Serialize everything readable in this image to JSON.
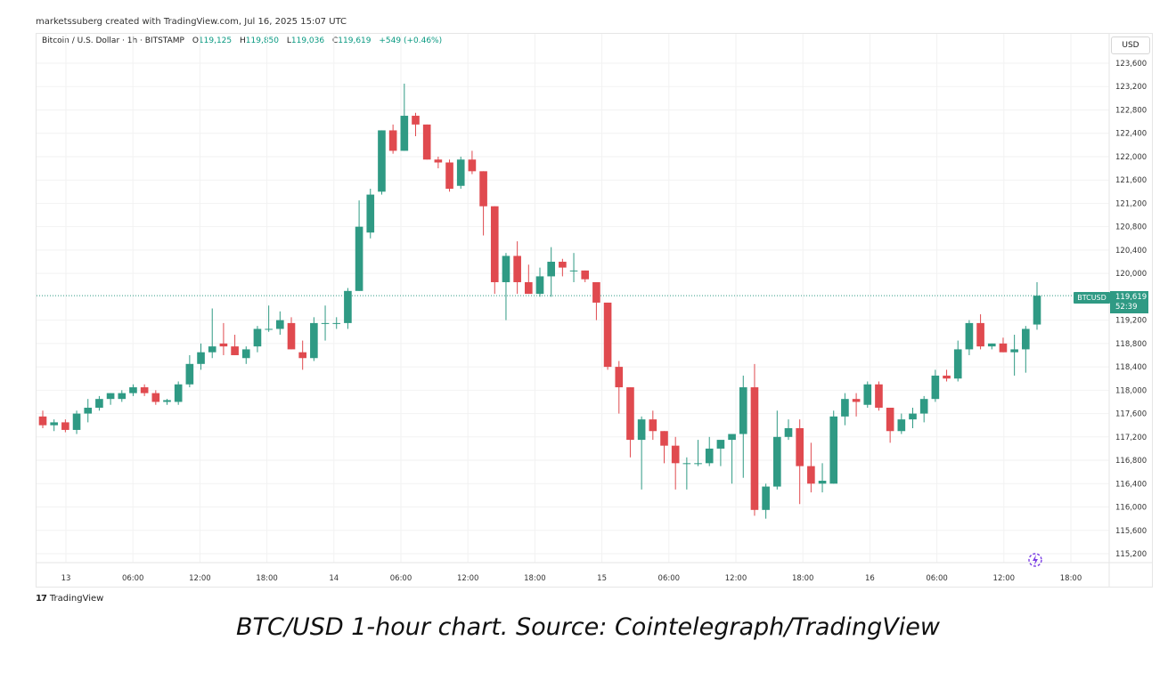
{
  "header": {
    "credit": "marketssuberg created with TradingView.com, Jul 16, 2025 15:07 UTC"
  },
  "legend": {
    "symbol": "Bitcoin / U.S. Dollar · 1h · BITSTAMP",
    "open_label": "O",
    "open": "119,125",
    "high_label": "H",
    "high": "119,850",
    "low_label": "L",
    "low": "119,036",
    "close_label": "C",
    "close": "119,619",
    "change": "+549 (+0.46%)"
  },
  "currency_button": "USD",
  "last_price": {
    "ticker": "BTCUSD",
    "price": "119,619",
    "countdown": "52:39",
    "value": 119619
  },
  "brand": {
    "logo": "17",
    "name": "TradingView"
  },
  "caption": "BTC/USD 1-hour chart. Source: Cointelegraph/TradingView",
  "icons": {
    "brand": "tradingview-logo-icon",
    "tool": "lightning-bolt-icon"
  },
  "colors": {
    "up": "#2f9a84",
    "down": "#e04a4f",
    "last_price_line": "#2f9a84"
  },
  "chart_data": {
    "type": "candlestick",
    "title": "",
    "xlabel": "",
    "ylabel": "",
    "ylim": [
      115000,
      123800
    ],
    "grid": true,
    "y_ticks": [
      "123,600",
      "123,200",
      "122,800",
      "122,400",
      "122,000",
      "121,600",
      "121,200",
      "120,800",
      "120,400",
      "120,000",
      "119,200",
      "118,800",
      "118,400",
      "118,000",
      "117,600",
      "117,200",
      "116,800",
      "116,400",
      "116,000",
      "115,600",
      "115,200"
    ],
    "y_tick_values": [
      123600,
      123200,
      122800,
      122400,
      122000,
      121600,
      121200,
      120800,
      120400,
      120000,
      119200,
      118800,
      118400,
      118000,
      117600,
      117200,
      116800,
      116400,
      116000,
      115600,
      115200
    ],
    "x_ticks": [
      "13",
      "06:00",
      "12:00",
      "18:00",
      "14",
      "06:00",
      "12:00",
      "18:00",
      "15",
      "06:00",
      "12:00",
      "18:00",
      "16",
      "06:00",
      "12:00",
      "18:00"
    ],
    "x_tick_hours": [
      0,
      6,
      12,
      18,
      24,
      30,
      36,
      42,
      48,
      54,
      60,
      66,
      72,
      78,
      84,
      90
    ],
    "candles": [
      {
        "o": 117550,
        "h": 117650,
        "l": 117350,
        "c": 117400
      },
      {
        "o": 117400,
        "h": 117500,
        "l": 117300,
        "c": 117450
      },
      {
        "o": 117450,
        "h": 117500,
        "l": 117280,
        "c": 117320
      },
      {
        "o": 117320,
        "h": 117650,
        "l": 117250,
        "c": 117600
      },
      {
        "o": 117600,
        "h": 117850,
        "l": 117450,
        "c": 117700
      },
      {
        "o": 117700,
        "h": 117900,
        "l": 117650,
        "c": 117850
      },
      {
        "o": 117850,
        "h": 117950,
        "l": 117750,
        "c": 117950
      },
      {
        "o": 117850,
        "h": 118000,
        "l": 117800,
        "c": 117950
      },
      {
        "o": 117950,
        "h": 118100,
        "l": 117900,
        "c": 118050
      },
      {
        "o": 118050,
        "h": 118100,
        "l": 117900,
        "c": 117950
      },
      {
        "o": 117950,
        "h": 118000,
        "l": 117750,
        "c": 117800
      },
      {
        "o": 117800,
        "h": 117850,
        "l": 117750,
        "c": 117830
      },
      {
        "o": 117800,
        "h": 118150,
        "l": 117750,
        "c": 118100
      },
      {
        "o": 118100,
        "h": 118600,
        "l": 118050,
        "c": 118450
      },
      {
        "o": 118450,
        "h": 118800,
        "l": 118350,
        "c": 118650
      },
      {
        "o": 118650,
        "h": 119400,
        "l": 118550,
        "c": 118750
      },
      {
        "o": 118800,
        "h": 119150,
        "l": 118600,
        "c": 118750
      },
      {
        "o": 118750,
        "h": 118950,
        "l": 118600,
        "c": 118600
      },
      {
        "o": 118550,
        "h": 118750,
        "l": 118450,
        "c": 118700
      },
      {
        "o": 118750,
        "h": 119100,
        "l": 118650,
        "c": 119050
      },
      {
        "o": 119050,
        "h": 119450,
        "l": 119000,
        "c": 119050
      },
      {
        "o": 119050,
        "h": 119350,
        "l": 118950,
        "c": 119200
      },
      {
        "o": 119150,
        "h": 119250,
        "l": 118700,
        "c": 118700
      },
      {
        "o": 118650,
        "h": 118850,
        "l": 118350,
        "c": 118550
      },
      {
        "o": 118550,
        "h": 119250,
        "l": 118500,
        "c": 119150
      },
      {
        "o": 119150,
        "h": 119450,
        "l": 118850,
        "c": 119150
      },
      {
        "o": 119150,
        "h": 119250,
        "l": 119050,
        "c": 119150
      },
      {
        "o": 119150,
        "h": 119750,
        "l": 119050,
        "c": 119700
      },
      {
        "o": 119700,
        "h": 121250,
        "l": 119700,
        "c": 120800
      },
      {
        "o": 120700,
        "h": 121450,
        "l": 120600,
        "c": 121350
      },
      {
        "o": 121400,
        "h": 122450,
        "l": 121350,
        "c": 122450
      },
      {
        "o": 122450,
        "h": 122550,
        "l": 122050,
        "c": 122100
      },
      {
        "o": 122100,
        "h": 123250,
        "l": 122100,
        "c": 122700
      },
      {
        "o": 122700,
        "h": 122750,
        "l": 122350,
        "c": 122550
      },
      {
        "o": 122550,
        "h": 122550,
        "l": 121950,
        "c": 121950
      },
      {
        "o": 121950,
        "h": 122000,
        "l": 121800,
        "c": 121900
      },
      {
        "o": 121900,
        "h": 121950,
        "l": 121400,
        "c": 121450
      },
      {
        "o": 121500,
        "h": 122000,
        "l": 121450,
        "c": 121950
      },
      {
        "o": 121950,
        "h": 122100,
        "l": 121700,
        "c": 121750
      },
      {
        "o": 121750,
        "h": 121750,
        "l": 120650,
        "c": 121150
      },
      {
        "o": 121150,
        "h": 121150,
        "l": 119650,
        "c": 119850
      },
      {
        "o": 119850,
        "h": 120350,
        "l": 119200,
        "c": 120300
      },
      {
        "o": 120300,
        "h": 120550,
        "l": 119650,
        "c": 119850
      },
      {
        "o": 119850,
        "h": 120150,
        "l": 119650,
        "c": 119650
      },
      {
        "o": 119650,
        "h": 120100,
        "l": 119600,
        "c": 119950
      },
      {
        "o": 119950,
        "h": 120450,
        "l": 119600,
        "c": 120200
      },
      {
        "o": 120200,
        "h": 120250,
        "l": 119950,
        "c": 120100
      },
      {
        "o": 120050,
        "h": 120350,
        "l": 119850,
        "c": 120050
      },
      {
        "o": 120050,
        "h": 120050,
        "l": 119850,
        "c": 119900
      },
      {
        "o": 119850,
        "h": 119850,
        "l": 119200,
        "c": 119500
      },
      {
        "o": 119500,
        "h": 119500,
        "l": 118350,
        "c": 118400
      },
      {
        "o": 118400,
        "h": 118500,
        "l": 117600,
        "c": 118050
      },
      {
        "o": 118050,
        "h": 118050,
        "l": 116850,
        "c": 117150
      },
      {
        "o": 117150,
        "h": 117550,
        "l": 116300,
        "c": 117500
      },
      {
        "o": 117500,
        "h": 117650,
        "l": 117150,
        "c": 117300
      },
      {
        "o": 117300,
        "h": 117300,
        "l": 116750,
        "c": 117050
      },
      {
        "o": 117050,
        "h": 117200,
        "l": 116300,
        "c": 116750
      },
      {
        "o": 116750,
        "h": 116850,
        "l": 116300,
        "c": 116750
      },
      {
        "o": 116750,
        "h": 117150,
        "l": 116700,
        "c": 116750
      },
      {
        "o": 116750,
        "h": 117200,
        "l": 116700,
        "c": 117000
      },
      {
        "o": 117000,
        "h": 117100,
        "l": 116700,
        "c": 117150
      },
      {
        "o": 117150,
        "h": 117200,
        "l": 116400,
        "c": 117250
      },
      {
        "o": 117250,
        "h": 118250,
        "l": 116500,
        "c": 118050
      },
      {
        "o": 118050,
        "h": 118450,
        "l": 115850,
        "c": 115950
      },
      {
        "o": 115950,
        "h": 116400,
        "l": 115800,
        "c": 116350
      },
      {
        "o": 116350,
        "h": 117650,
        "l": 116300,
        "c": 117200
      },
      {
        "o": 117200,
        "h": 117500,
        "l": 117150,
        "c": 117350
      },
      {
        "o": 117350,
        "h": 117500,
        "l": 116050,
        "c": 116700
      },
      {
        "o": 116700,
        "h": 117100,
        "l": 116250,
        "c": 116400
      },
      {
        "o": 116400,
        "h": 116750,
        "l": 116250,
        "c": 116450
      },
      {
        "o": 116400,
        "h": 117650,
        "l": 116400,
        "c": 117550
      },
      {
        "o": 117550,
        "h": 117950,
        "l": 117400,
        "c": 117850
      },
      {
        "o": 117850,
        "h": 117950,
        "l": 117550,
        "c": 117800
      },
      {
        "o": 117750,
        "h": 118150,
        "l": 117700,
        "c": 118100
      },
      {
        "o": 118100,
        "h": 118150,
        "l": 117650,
        "c": 117700
      },
      {
        "o": 117700,
        "h": 117700,
        "l": 117100,
        "c": 117300
      },
      {
        "o": 117300,
        "h": 117600,
        "l": 117250,
        "c": 117500
      },
      {
        "o": 117500,
        "h": 117700,
        "l": 117350,
        "c": 117600
      },
      {
        "o": 117600,
        "h": 117900,
        "l": 117450,
        "c": 117850
      },
      {
        "o": 117850,
        "h": 118350,
        "l": 117800,
        "c": 118250
      },
      {
        "o": 118250,
        "h": 118350,
        "l": 118150,
        "c": 118200
      },
      {
        "o": 118200,
        "h": 118850,
        "l": 118150,
        "c": 118700
      },
      {
        "o": 118700,
        "h": 119200,
        "l": 118600,
        "c": 119150
      },
      {
        "o": 119150,
        "h": 119300,
        "l": 118700,
        "c": 118750
      },
      {
        "o": 118750,
        "h": 118800,
        "l": 118700,
        "c": 118800
      },
      {
        "o": 118800,
        "h": 118900,
        "l": 118650,
        "c": 118650
      },
      {
        "o": 118650,
        "h": 118950,
        "l": 118250,
        "c": 118700
      },
      {
        "o": 118700,
        "h": 119100,
        "l": 118300,
        "c": 119050
      },
      {
        "o": 119125,
        "h": 119850,
        "l": 119036,
        "c": 119619
      }
    ]
  }
}
